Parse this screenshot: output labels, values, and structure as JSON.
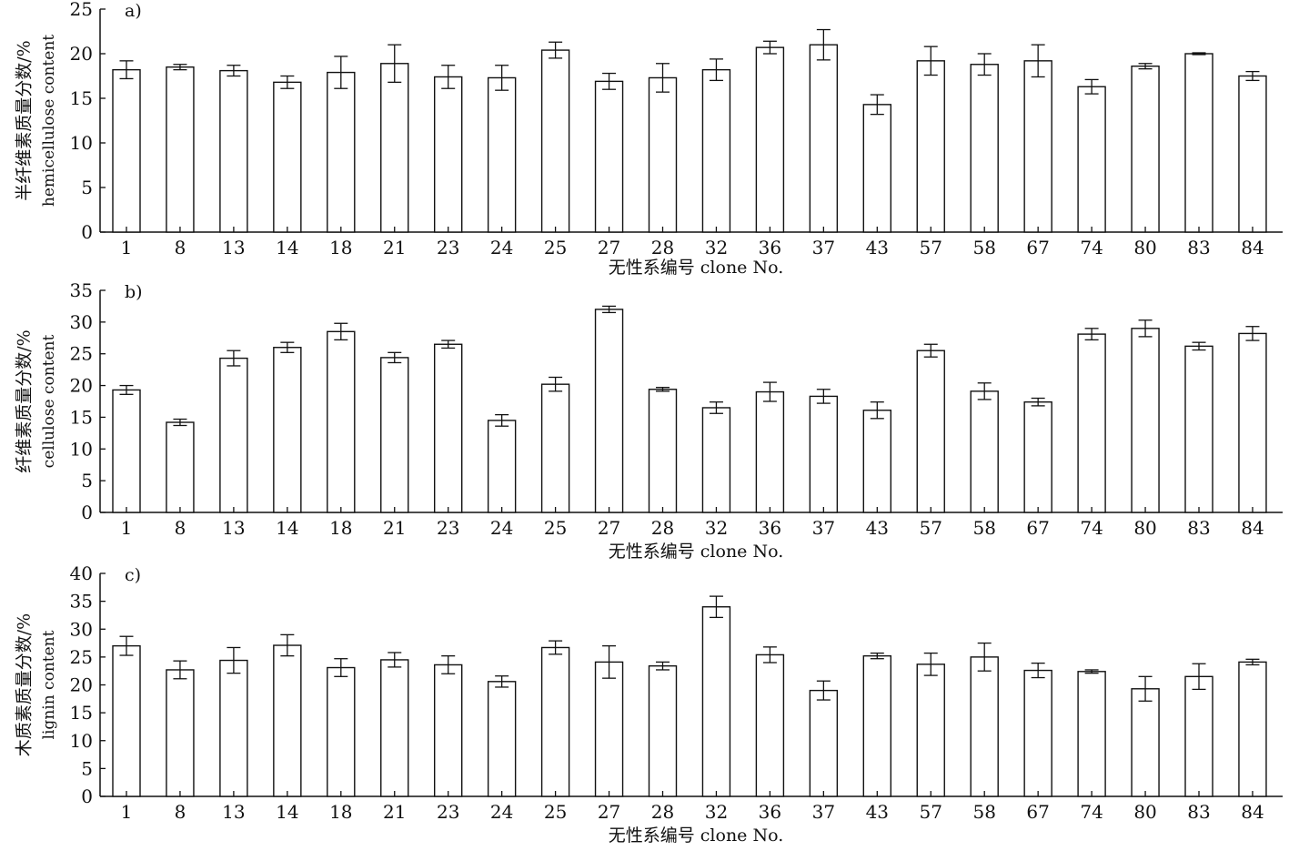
{
  "chart_data": [
    {
      "type": "bar",
      "panel_label": "a)",
      "ylabel_cn": "半纤维素质量分数/%",
      "ylabel_en": "hemicellulose content",
      "xlabel": "无性系编号 clone No.",
      "ylim": [
        0,
        25
      ],
      "yticks": [
        0,
        5,
        10,
        15,
        20,
        25
      ],
      "categories": [
        "1",
        "8",
        "13",
        "14",
        "18",
        "21",
        "23",
        "24",
        "25",
        "27",
        "28",
        "32",
        "36",
        "37",
        "43",
        "57",
        "58",
        "67",
        "74",
        "80",
        "83",
        "84"
      ],
      "values": [
        18.2,
        18.5,
        18.1,
        16.8,
        17.9,
        18.9,
        17.4,
        17.3,
        20.4,
        16.9,
        17.3,
        18.2,
        20.7,
        21.0,
        14.3,
        19.2,
        18.8,
        19.2,
        16.3,
        18.6,
        20.0,
        17.5
      ],
      "errors": [
        1.0,
        0.3,
        0.6,
        0.7,
        1.8,
        2.1,
        1.3,
        1.4,
        0.9,
        0.9,
        1.6,
        1.2,
        0.7,
        1.7,
        1.1,
        1.6,
        1.2,
        1.8,
        0.8,
        0.3,
        0.1,
        0.5
      ]
    },
    {
      "type": "bar",
      "panel_label": "b)",
      "ylabel_cn": "纤维素质量分数/%",
      "ylabel_en": "cellulose content",
      "xlabel": "无性系编号 clone No.",
      "ylim": [
        0,
        35
      ],
      "yticks": [
        0,
        5,
        10,
        15,
        20,
        25,
        30,
        35
      ],
      "categories": [
        "1",
        "8",
        "13",
        "14",
        "18",
        "21",
        "23",
        "24",
        "25",
        "27",
        "28",
        "32",
        "36",
        "37",
        "43",
        "57",
        "58",
        "67",
        "74",
        "80",
        "83",
        "84"
      ],
      "values": [
        19.3,
        14.2,
        24.3,
        26.0,
        28.5,
        24.4,
        26.5,
        14.5,
        20.2,
        32.0,
        19.4,
        16.5,
        19.0,
        18.3,
        16.1,
        25.5,
        19.1,
        17.4,
        28.1,
        29.0,
        26.2,
        28.2
      ],
      "errors": [
        0.7,
        0.5,
        1.2,
        0.8,
        1.3,
        0.8,
        0.6,
        0.9,
        1.1,
        0.5,
        0.3,
        0.9,
        1.5,
        1.1,
        1.3,
        1.0,
        1.3,
        0.6,
        0.9,
        1.3,
        0.6,
        1.1
      ]
    },
    {
      "type": "bar",
      "panel_label": "c)",
      "ylabel_cn": "木质素质量分数/%",
      "ylabel_en": "lignin content",
      "xlabel": "无性系编号 clone No.",
      "ylim": [
        0,
        40
      ],
      "yticks": [
        0,
        5,
        10,
        15,
        20,
        25,
        30,
        35,
        40
      ],
      "categories": [
        "1",
        "8",
        "13",
        "14",
        "18",
        "21",
        "23",
        "24",
        "25",
        "27",
        "28",
        "32",
        "36",
        "37",
        "43",
        "57",
        "58",
        "67",
        "74",
        "80",
        "83",
        "84"
      ],
      "values": [
        27.0,
        22.7,
        24.4,
        27.1,
        23.1,
        24.5,
        23.6,
        20.6,
        26.7,
        24.1,
        23.4,
        34.0,
        25.4,
        19.0,
        25.2,
        23.7,
        25.0,
        22.6,
        22.4,
        19.3,
        21.5,
        24.1
      ],
      "errors": [
        1.7,
        1.6,
        2.3,
        1.9,
        1.6,
        1.3,
        1.6,
        1.0,
        1.2,
        2.9,
        0.7,
        1.9,
        1.4,
        1.7,
        0.5,
        2.0,
        2.5,
        1.3,
        0.3,
        2.2,
        2.3,
        0.5
      ]
    }
  ]
}
